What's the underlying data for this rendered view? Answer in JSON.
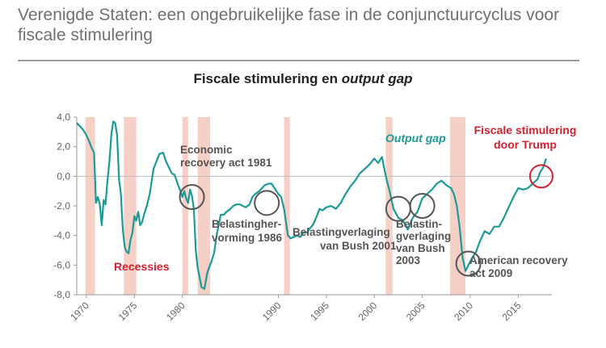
{
  "header": {
    "title": "Verenigde Staten: een ongebruikelijke fase in de conjunctuurcyclus voor fiscale stimulering"
  },
  "chart_data": {
    "type": "line",
    "title_plain": "Fiscale stimulering en ",
    "title_italic": "output gap",
    "series": [
      {
        "name": "Output gap",
        "color": "#1b9b98",
        "x": [
          1969.0,
          1969.3,
          1969.6,
          1969.9,
          1970.2,
          1970.5,
          1970.8,
          1971.0,
          1971.2,
          1971.4,
          1971.6,
          1971.8,
          1972.0,
          1972.2,
          1972.4,
          1972.6,
          1972.8,
          1973.0,
          1973.2,
          1973.4,
          1973.6,
          1973.8,
          1974.0,
          1974.2,
          1974.4,
          1974.6,
          1974.8,
          1975.0,
          1975.2,
          1975.4,
          1975.6,
          1975.8,
          1976.0,
          1976.3,
          1976.6,
          1977.0,
          1977.3,
          1977.6,
          1978.0,
          1978.3,
          1978.6,
          1978.9,
          1979.2,
          1979.5,
          1979.8,
          1980.0,
          1980.2,
          1980.4,
          1980.6,
          1980.8,
          1981.0,
          1981.2,
          1981.4,
          1981.6,
          1981.8,
          1982.0,
          1982.3,
          1982.6,
          1983.0,
          1983.3,
          1983.6,
          1984.0,
          1984.3,
          1984.6,
          1985.0,
          1985.3,
          1985.6,
          1986.0,
          1986.3,
          1986.6,
          1987.0,
          1987.3,
          1987.6,
          1988.0,
          1988.3,
          1988.6,
          1989.0,
          1989.3,
          1989.6,
          1990.0,
          1990.3,
          1990.6,
          1991.0,
          1991.3,
          1991.6,
          1992.0,
          1992.3,
          1992.6,
          1993.0,
          1993.3,
          1993.6,
          1994.0,
          1994.3,
          1994.6,
          1995.0,
          1995.5,
          1996.0,
          1996.5,
          1997.0,
          1997.5,
          1998.0,
          1998.5,
          1999.0,
          1999.5,
          2000.0,
          2000.4,
          2000.8,
          2001.2,
          2001.6,
          2002.0,
          2002.5,
          2003.0,
          2003.5,
          2004.0,
          2004.5,
          2005.0,
          2005.5,
          2006.0,
          2006.5,
          2007.0,
          2007.5,
          2008.0,
          2008.3,
          2008.6,
          2008.9,
          2009.2,
          2009.5,
          2009.8,
          2010.2,
          2010.6,
          2011.0,
          2011.5,
          2012.0,
          2012.5,
          2013.0,
          2013.5,
          2014.0,
          2014.5,
          2015.0,
          2015.5,
          2016.0,
          2016.5,
          2017.0,
          2017.3,
          2017.6,
          2017.9
        ],
        "values": [
          3.6,
          3.4,
          3.2,
          2.9,
          2.5,
          2.0,
          1.6,
          -1.8,
          -1.4,
          -1.9,
          -3.3,
          -1.6,
          -1.9,
          -0.3,
          1.0,
          2.8,
          3.7,
          3.6,
          2.8,
          -0.2,
          -1.2,
          -3.6,
          -4.8,
          -5.1,
          -5.2,
          -4.3,
          -3.8,
          -2.7,
          -3.0,
          -2.4,
          -3.3,
          -3.1,
          -2.6,
          -2.0,
          -1.2,
          0.5,
          1.0,
          1.5,
          1.6,
          1.0,
          0.6,
          0.2,
          0.1,
          -0.5,
          -1.0,
          -1.4,
          -1.0,
          -1.5,
          -1.8,
          -0.9,
          -1.3,
          -2.2,
          -5.0,
          -6.2,
          -6.8,
          -7.5,
          -7.6,
          -6.5,
          -5.8,
          -5.2,
          -3.9,
          -2.6,
          -2.6,
          -2.4,
          -2.2,
          -2.0,
          -1.9,
          -1.9,
          -2.0,
          -2.1,
          -1.9,
          -1.4,
          -1.2,
          -1.0,
          -0.8,
          -0.6,
          -0.5,
          -0.5,
          -0.8,
          -1.2,
          -1.4,
          -2.2,
          -4.0,
          -4.2,
          -4.1,
          -4.0,
          -4.1,
          -3.8,
          -3.8,
          -3.5,
          -3.3,
          -2.7,
          -2.2,
          -2.3,
          -2.1,
          -2.0,
          -2.2,
          -1.8,
          -1.2,
          -0.7,
          -0.3,
          0.2,
          0.5,
          0.8,
          1.2,
          0.9,
          1.3,
          0.0,
          -1.0,
          -2.2,
          -2.8,
          -3.0,
          -3.6,
          -2.8,
          -2.4,
          -1.5,
          -1.2,
          -0.9,
          -0.5,
          -0.3,
          -0.6,
          -0.8,
          -1.2,
          -2.0,
          -3.5,
          -5.5,
          -6.4,
          -6.0,
          -5.5,
          -5.1,
          -4.4,
          -3.7,
          -3.9,
          -3.4,
          -3.4,
          -2.8,
          -2.1,
          -1.4,
          -0.8,
          -0.9,
          -0.8,
          -0.5,
          -0.2,
          0.3,
          0.6,
          1.2
        ]
      }
    ],
    "recessions": [
      [
        1969.9,
        1970.9
      ],
      [
        1973.9,
        1975.2
      ],
      [
        1980.0,
        1980.6
      ],
      [
        1981.6,
        1982.9
      ],
      [
        1990.6,
        1991.2
      ],
      [
        2001.2,
        2001.9
      ],
      [
        2007.9,
        2009.5
      ]
    ],
    "xlim": [
      1969,
      2018.5
    ],
    "ylim": [
      -8.0,
      4.0
    ],
    "y_ticks": [
      4.0,
      2.0,
      0.0,
      -2.0,
      -4.0,
      -6.0,
      -8.0
    ],
    "y_tick_labels": [
      "4,0",
      "2,0",
      "0,0",
      "-2,0",
      "-4,0",
      "-6,0",
      "-8,0"
    ],
    "x_ticks": [
      1970,
      1975,
      1980,
      1990,
      1995,
      2000,
      2005,
      2010,
      2015
    ],
    "x_tick_labels": [
      "1970",
      "1975",
      "1980",
      "1990",
      "1995",
      "2000",
      "2005",
      "2010",
      "2015"
    ],
    "grid": false,
    "colors": {
      "line": "#1b9b98",
      "recession": "#f6cfc6",
      "red": "#d6202f",
      "circle": "#555555",
      "text": "#555555"
    },
    "annotations": {
      "output_gap_label": "Output gap",
      "fiscal_label_1": "Fiscale stimulering",
      "fiscal_label_2": "door Trump",
      "recessies_label": "Recessies",
      "ecra_1": "Economic",
      "ecra_2": "recovery act 1981",
      "belasting86_1": "Belastingher-",
      "belasting86_2": "vorming 1986",
      "bush01_1": "Belastingverlaging",
      "bush01_2": "van Bush 2001",
      "bush03_1": "Belastin-",
      "bush03_2": "gverlaging",
      "bush03_3": "van Bush",
      "bush03_4": "2003",
      "arra_1": "American recovery",
      "arra_2": "act 2009"
    },
    "circles": [
      {
        "name": "circle-ecra-1981",
        "x": 1981.0,
        "y": -1.4,
        "red": false
      },
      {
        "name": "circle-tax-1986",
        "x": 1988.8,
        "y": -1.8,
        "red": false
      },
      {
        "name": "circle-bush-2001",
        "x": 2002.5,
        "y": -2.2,
        "red": false
      },
      {
        "name": "circle-bush-2003",
        "x": 2005.0,
        "y": -2.0,
        "red": false
      },
      {
        "name": "circle-arra-2009",
        "x": 2009.8,
        "y": -5.9,
        "red": false
      },
      {
        "name": "circle-trump",
        "x": 2017.4,
        "y": 0.0,
        "red": true
      }
    ]
  }
}
